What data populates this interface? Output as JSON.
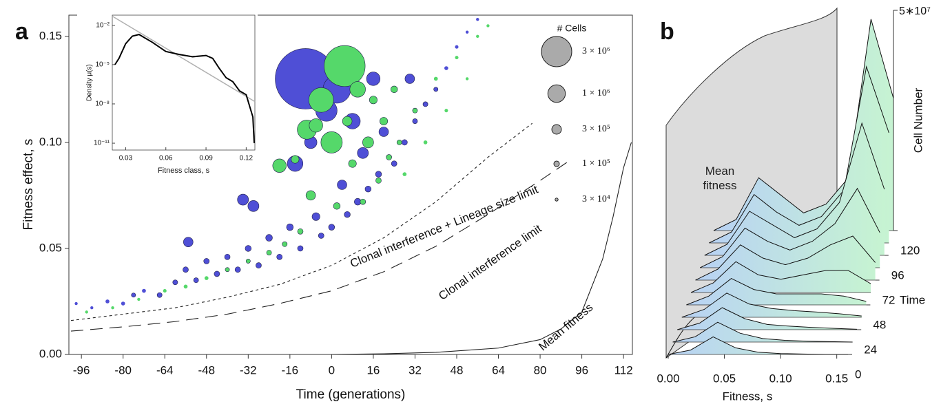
{
  "chart_data": [
    {
      "type": "scatter",
      "panel": "a",
      "xlabel": "Time (generations)",
      "ylabel": "Fitness effect, s",
      "xlim": [
        -100.8,
        115.4
      ],
      "xticks": [
        -96,
        -80,
        -64,
        -48,
        -32,
        -16,
        0,
        16,
        32,
        48,
        64,
        80,
        96,
        112
      ],
      "ylim": [
        0,
        0.16
      ],
      "yticks": [
        {
          "value": 0,
          "label": "0.00"
        },
        {
          "value": 0.05,
          "label": "0.05"
        },
        {
          "value": 0.1,
          "label": "0.10"
        },
        {
          "value": 0.15,
          "label": "0.15"
        }
      ],
      "series": [
        {
          "color": "#4f4fd6",
          "x": [
            -98,
            -92,
            -86,
            -80,
            -76,
            -72,
            -66,
            -60,
            -56,
            -55,
            -52,
            -48,
            -44,
            -40,
            -36,
            -34,
            -32,
            -30,
            -28,
            -24,
            -20,
            -16,
            -14,
            -12,
            -10,
            -8,
            -6,
            -4,
            -2,
            0,
            2,
            4,
            6,
            8,
            10,
            12,
            14,
            16,
            18,
            20,
            24,
            28,
            30,
            32,
            36,
            40,
            44,
            48,
            52,
            56
          ],
          "values": [
            0.024,
            0.022,
            0.025,
            0.024,
            0.028,
            0.03,
            0.028,
            0.034,
            0.04,
            0.053,
            0.035,
            0.044,
            0.038,
            0.046,
            0.04,
            0.073,
            0.05,
            0.07,
            0.042,
            0.055,
            0.046,
            0.06,
            0.09,
            0.05,
            0.13,
            0.1,
            0.065,
            0.056,
            0.115,
            0.06,
            0.125,
            0.08,
            0.066,
            0.11,
            0.072,
            0.095,
            0.078,
            0.13,
            0.085,
            0.105,
            0.09,
            0.1,
            0.13,
            0.11,
            0.118,
            0.125,
            0.135,
            0.145,
            0.152,
            0.158
          ],
          "sizes": [
            30000,
            30000,
            50000,
            50000,
            60000,
            50000,
            80000,
            80000,
            100000,
            300000,
            80000,
            100000,
            100000,
            100000,
            100000,
            400000,
            120000,
            400000,
            100000,
            150000,
            100000,
            150000,
            800000,
            100000,
            12000000,
            500000,
            200000,
            100000,
            1500000,
            120000,
            2500000,
            300000,
            120000,
            800000,
            150000,
            400000,
            120000,
            600000,
            120000,
            300000,
            100000,
            100000,
            300000,
            80000,
            80000,
            60000,
            50000,
            40000,
            30000,
            30000
          ]
        },
        {
          "color": "#55d86a",
          "x": [
            -94,
            -84,
            -74,
            -64,
            -56,
            -48,
            -40,
            -32,
            -24,
            -20,
            -18,
            -14,
            -12,
            -9.5,
            -8,
            -6,
            -4,
            0,
            2,
            5,
            6,
            8,
            10,
            12,
            14,
            16,
            18,
            20,
            22,
            24,
            26,
            28,
            32,
            36,
            40,
            44,
            48,
            52,
            56,
            60
          ],
          "values": [
            0.02,
            0.022,
            0.026,
            0.03,
            0.032,
            0.036,
            0.04,
            0.044,
            0.048,
            0.089,
            0.052,
            0.092,
            0.058,
            0.106,
            0.075,
            0.108,
            0.12,
            0.1,
            0.07,
            0.136,
            0.11,
            0.09,
            0.125,
            0.072,
            0.1,
            0.12,
            0.082,
            0.11,
            0.093,
            0.125,
            0.1,
            0.085,
            0.115,
            0.1,
            0.13,
            0.115,
            0.14,
            0.13,
            0.15,
            0.155
          ],
          "sizes": [
            30000,
            30000,
            30000,
            40000,
            50000,
            50000,
            60000,
            60000,
            80000,
            600000,
            80000,
            200000,
            100000,
            1200000,
            300000,
            600000,
            2000000,
            1500000,
            150000,
            5500000,
            300000,
            200000,
            800000,
            100000,
            400000,
            200000,
            100000,
            200000,
            100000,
            150000,
            80000,
            50000,
            80000,
            50000,
            50000,
            40000,
            40000,
            30000,
            30000,
            30000
          ]
        }
      ],
      "lines": [
        {
          "name": "Clonal interference + Lineage size limit",
          "style": "short-dash",
          "x": [
            -100,
            -80,
            -60,
            -40,
            -20,
            0,
            20,
            40,
            60,
            77
          ],
          "values": [
            0.016,
            0.019,
            0.022,
            0.027,
            0.033,
            0.042,
            0.055,
            0.072,
            0.093,
            0.109
          ]
        },
        {
          "name": "Clonal interference limit",
          "style": "long-dash",
          "x": [
            -100,
            -80,
            -60,
            -40,
            -20,
            0,
            20,
            40,
            60,
            80,
            92
          ],
          "values": [
            0.011,
            0.013,
            0.0155,
            0.019,
            0.024,
            0.03,
            0.039,
            0.051,
            0.066,
            0.082,
            0.092
          ]
        },
        {
          "name": "Mean fitness",
          "style": "solid",
          "x": [
            0,
            20,
            40,
            64,
            80,
            88,
            96,
            104,
            108,
            112,
            115
          ],
          "values": [
            0,
            0.0003,
            0.001,
            0.003,
            0.007,
            0.012,
            0.02,
            0.045,
            0.065,
            0.088,
            0.1
          ]
        }
      ],
      "size_legend": {
        "title": "# Cells",
        "sizes": [
          {
            "value": 3000000,
            "label": "3 × 10⁶"
          },
          {
            "value": 1000000,
            "label": "1 × 10⁶"
          },
          {
            "value": 300000,
            "label": "3 × 10⁵"
          },
          {
            "value": 100000,
            "label": "1 × 10⁵"
          },
          {
            "value": 30000,
            "label": "3 × 10⁴"
          }
        ]
      }
    },
    {
      "type": "line",
      "xlabel": "Fitness class, s",
      "ylabel": "Density μ(s)",
      "log_y": true,
      "xlim": [
        0.02,
        0.1265
      ],
      "xticks": [
        0.03,
        0.06,
        0.09,
        0.12
      ],
      "ylim": [
        3e-12,
        0.06
      ],
      "yticks": [
        {
          "value": 0.01,
          "label": "10⁻²"
        },
        {
          "value": 1e-05,
          "label": "10⁻⁵"
        },
        {
          "value": 1e-08,
          "label": "10⁻⁸"
        },
        {
          "value": 1e-11,
          "label": "10⁻¹¹"
        }
      ],
      "series": [
        {
          "color": "#000000",
          "x": [
            0.022,
            0.025,
            0.03,
            0.035,
            0.04,
            0.045,
            0.05,
            0.06,
            0.07,
            0.08,
            0.09,
            0.095,
            0.1,
            0.105,
            0.11,
            0.115,
            0.12,
            0.125,
            0.126
          ],
          "values": [
            1e-05,
            3e-05,
            0.0004,
            0.0015,
            0.002,
            0.001,
            0.0005,
            0.0001,
            6e-05,
            4e-05,
            5e-05,
            3e-05,
            5e-06,
            1e-06,
            5e-07,
            1e-07,
            5e-08,
            1e-09,
            1e-11
          ]
        },
        {
          "color": "#b0b0b0",
          "x": [
            0.02,
            0.1265
          ],
          "values": [
            0.05,
            1.5e-08
          ]
        }
      ]
    },
    {
      "type": "waterfall",
      "panel": "b",
      "annotation": "Mean fitness",
      "xlabel": "Fitness, s",
      "tlabel": "Time",
      "zlabel": "Cell Number",
      "xlim": [
        0,
        0.16
      ],
      "xticks": [
        {
          "value": 0,
          "label": "0.00"
        },
        {
          "value": 0.05,
          "label": "0.05"
        },
        {
          "value": 0.1,
          "label": "0.10"
        },
        {
          "value": 0.15,
          "label": "0.15"
        }
      ],
      "tlim": [
        0,
        120
      ],
      "tticks": [
        0,
        24,
        48,
        72,
        96,
        120
      ],
      "zlim": [
        0,
        50000000
      ],
      "zticks": [
        {
          "value": 50000000,
          "label": "5∗10⁷"
        }
      ],
      "x": [
        0,
        0.02,
        0.04,
        0.06,
        0.08,
        0.1,
        0.12,
        0.14,
        0.16
      ],
      "times": [
        0,
        12,
        24,
        36,
        48,
        60,
        72,
        84,
        96,
        108,
        120
      ],
      "profiles": [
        [
          0,
          1000000,
          4000000,
          1500000,
          500000,
          200000,
          100000,
          0,
          0
        ],
        [
          0,
          1200000,
          4500000,
          2000000,
          800000,
          400000,
          200000,
          100000,
          0
        ],
        [
          0,
          1500000,
          5000000,
          2500000,
          1200000,
          800000,
          500000,
          300000,
          100000
        ],
        [
          0,
          1800000,
          5500000,
          3000000,
          2000000,
          1500000,
          1200000,
          800000,
          300000
        ],
        [
          0,
          2000000,
          6000000,
          3500000,
          2500000,
          2500000,
          2500000,
          2000000,
          800000
        ],
        [
          0,
          2200000,
          7000000,
          4000000,
          3000000,
          4000000,
          5000000,
          5000000,
          2000000
        ],
        [
          0,
          2500000,
          8000000,
          5000000,
          3500000,
          5000000,
          8000000,
          10000000,
          4000000
        ],
        [
          0,
          2500000,
          9000000,
          6000000,
          4000000,
          6000000,
          10000000,
          18000000,
          8000000
        ],
        [
          0,
          2500000,
          10000000,
          7000000,
          4000000,
          6000000,
          12000000,
          30000000,
          15000000
        ],
        [
          0,
          2500000,
          11000000,
          7000000,
          4000000,
          6000000,
          12000000,
          40000000,
          25000000
        ],
        [
          0,
          2500000,
          12000000,
          8000000,
          4000000,
          6000000,
          12000000,
          48000000,
          30000000
        ]
      ]
    }
  ]
}
